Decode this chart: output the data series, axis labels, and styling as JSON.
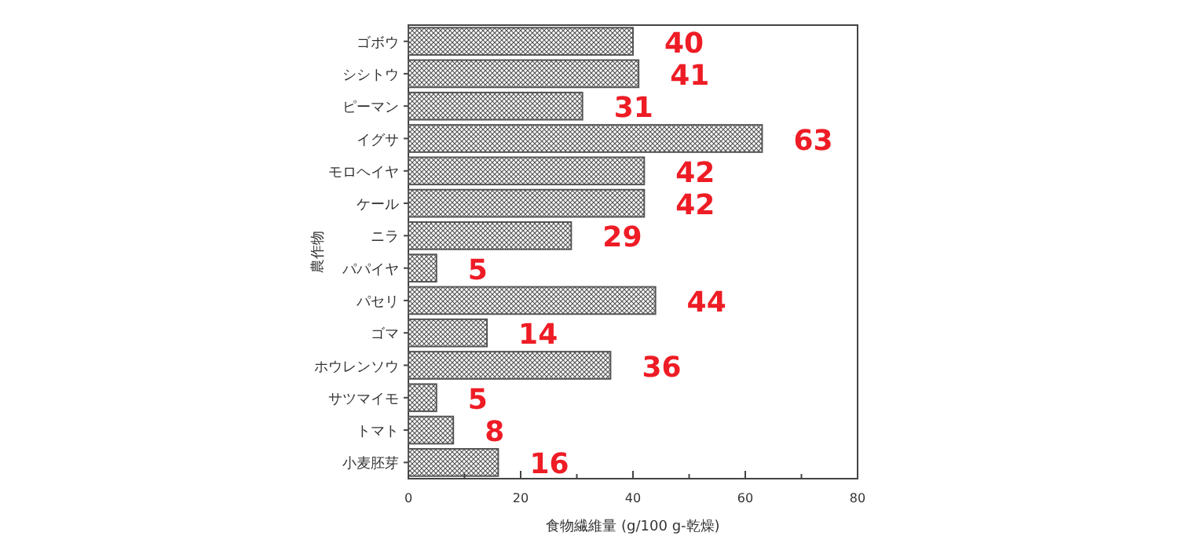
{
  "chart_data": {
    "type": "bar",
    "orientation": "horizontal",
    "xlabel": "食物繊維量 (g/100 g-乾燥)",
    "ylabel": "農作物",
    "categories": [
      "ゴボウ",
      "シシトウ",
      "ピーマン",
      "イグサ",
      "モロヘイヤ",
      "ケール",
      "ニラ",
      "パパイヤ",
      "パセリ",
      "ゴマ",
      "ホウレンソウ",
      "サツマイモ",
      "トマト",
      "小麦胚芽"
    ],
    "values": [
      40,
      41,
      31,
      63,
      42,
      42,
      29,
      5,
      44,
      14,
      36,
      5,
      8,
      16
    ],
    "color": "#555555",
    "data_labels": true,
    "xlim": [
      0,
      80
    ],
    "xticks": [
      0,
      {
        "value": 10,
        "label": null
      },
      20,
      {
        "value": 30,
        "label": null
      },
      40,
      {
        "value": 50,
        "label": null
      },
      60,
      {
        "value": 70,
        "label": null
      },
      80
    ],
    "grid": false
  }
}
